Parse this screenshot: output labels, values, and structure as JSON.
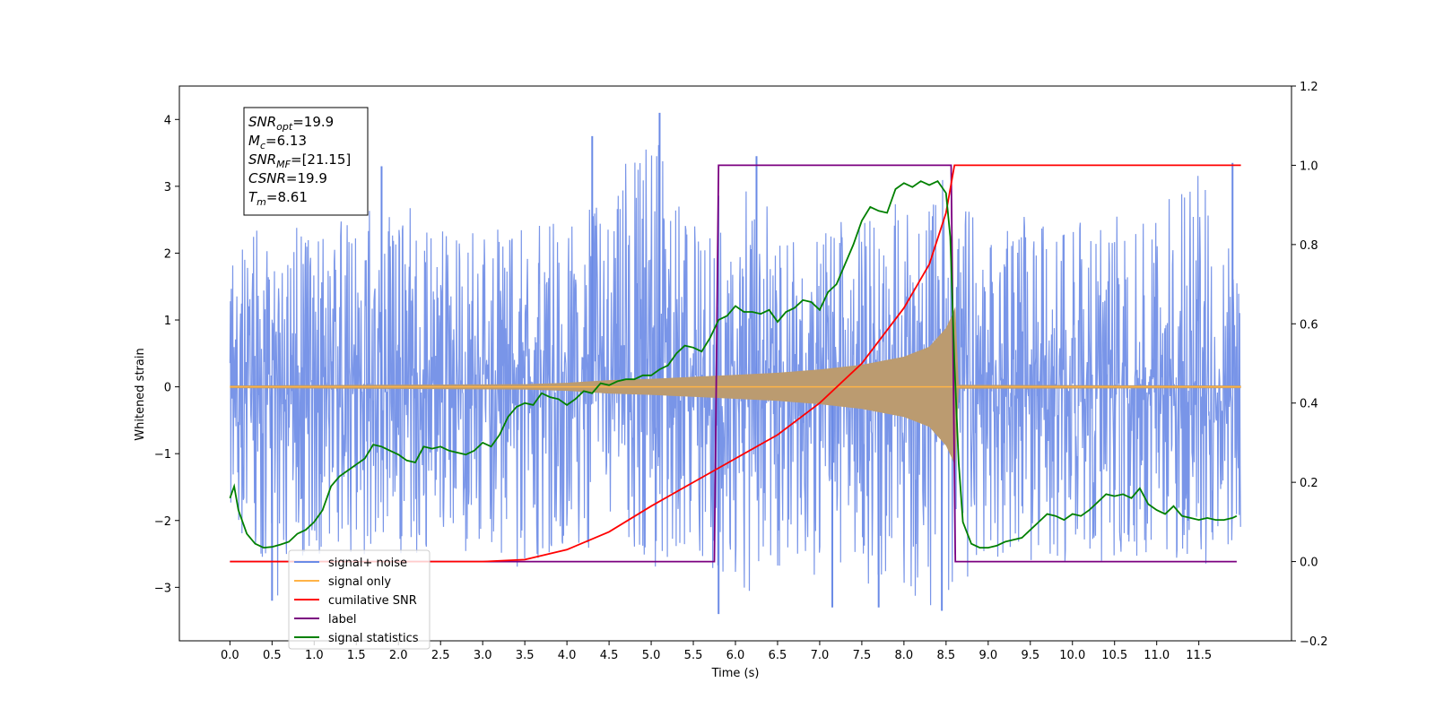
{
  "chart_data": {
    "type": "line",
    "xlabel": "Time (s)",
    "ylabel": "Whitened strain",
    "xlim": [
      -0.6,
      12.6
    ],
    "ylim_left": [
      -3.8,
      4.5
    ],
    "ylim_right": [
      -0.2,
      1.2
    ],
    "x_ticks": [
      0.0,
      0.5,
      1.0,
      1.5,
      2.0,
      2.5,
      3.0,
      3.5,
      4.0,
      4.5,
      5.0,
      5.5,
      6.0,
      6.5,
      7.0,
      7.5,
      8.0,
      8.5,
      9.0,
      9.5,
      10.0,
      10.5,
      11.0,
      11.5
    ],
    "x_tick_labels": [
      "0.0",
      "0.5",
      "1.0",
      "1.5",
      "2.0",
      "2.5",
      "3.0",
      "3.5",
      "4.0",
      "4.5",
      "5.0",
      "5.5",
      "6.0",
      "6.5",
      "7.0",
      "7.5",
      "8.0",
      "8.5",
      "9.0",
      "9.5",
      "10.0",
      "10.5",
      "11.0",
      "11.5"
    ],
    "y_left_ticks": [
      -3,
      -2,
      -1,
      0,
      1,
      2,
      3,
      4
    ],
    "y_left_tick_labels": [
      "−3",
      "−2",
      "−1",
      "0",
      "1",
      "2",
      "3",
      "4"
    ],
    "y_right_ticks": [
      -0.2,
      0.0,
      0.2,
      0.4,
      0.6,
      0.8,
      1.0,
      1.2
    ],
    "y_right_tick_labels": [
      "−0.2",
      "0.0",
      "0.2",
      "0.4",
      "0.6",
      "0.8",
      "1.0",
      "1.2"
    ],
    "legend_placement": "lower-left",
    "grid": false,
    "annotation": [
      {
        "main": "SNR",
        "sub": "opt",
        "value": "=19.9"
      },
      {
        "main": "M",
        "sub": "c",
        "value": "=6.13"
      },
      {
        "main": "SNR",
        "sub": "MF",
        "value": "=[21.15]"
      },
      {
        "main": "CSNR",
        "sub": "",
        "value": "=19.9"
      },
      {
        "main": "T",
        "sub": "m",
        "value": "=8.61"
      }
    ],
    "series": [
      {
        "name": "signal+ noise",
        "axis": "left",
        "color": "#6a8ae6",
        "envelope_x": [
          0.0,
          0.5,
          1.0,
          1.5,
          2.0,
          2.5,
          3.0,
          3.5,
          4.0,
          4.5,
          5.0,
          5.5,
          6.0,
          6.5,
          7.0,
          7.5,
          8.0,
          8.5,
          9.0,
          9.5,
          10.0,
          10.5,
          11.0,
          11.5,
          12.0
        ],
        "envelope_max": [
          2.5,
          2.6,
          2.7,
          3.0,
          2.8,
          2.4,
          2.6,
          2.5,
          2.7,
          2.9,
          4.1,
          2.6,
          3.3,
          2.5,
          2.6,
          2.8,
          2.9,
          3.3,
          2.6,
          2.6,
          2.5,
          2.6,
          2.6,
          3.4,
          2.0
        ],
        "envelope_min": [
          -2.2,
          -3.2,
          -2.7,
          -2.5,
          -2.8,
          -2.4,
          -2.6,
          -2.9,
          -2.6,
          -2.6,
          -2.7,
          -2.7,
          -3.4,
          -2.9,
          -2.8,
          -3.2,
          -3.3,
          -3.3,
          -2.7,
          -2.8,
          -2.6,
          -2.7,
          -2.7,
          -2.9,
          -2.2
        ],
        "spikes": [
          [
            0.5,
            -3.2
          ],
          [
            1.8,
            3.3
          ],
          [
            4.3,
            3.75
          ],
          [
            5.1,
            4.1
          ],
          [
            5.8,
            -3.4
          ],
          [
            6.25,
            3.45
          ],
          [
            7.15,
            -3.3
          ],
          [
            7.7,
            -3.3
          ],
          [
            8.45,
            -3.35
          ],
          [
            11.9,
            3.35
          ]
        ]
      },
      {
        "name": "signal only",
        "axis": "left",
        "color": "#ffb347",
        "envelope_x": [
          0.0,
          3.5,
          4.0,
          4.5,
          5.0,
          5.5,
          6.0,
          6.5,
          7.0,
          7.5,
          8.0,
          8.3,
          8.5,
          8.58,
          8.61,
          8.65,
          12.0
        ],
        "envelope_amp": [
          0.02,
          0.04,
          0.06,
          0.1,
          0.12,
          0.15,
          0.18,
          0.21,
          0.26,
          0.33,
          0.45,
          0.6,
          0.88,
          1.1,
          1.2,
          0.03,
          0.02
        ]
      },
      {
        "name": "cumilative SNR",
        "axis": "right",
        "color": "#ff0000",
        "x": [
          0.0,
          2.0,
          3.0,
          3.5,
          4.0,
          4.5,
          5.0,
          5.5,
          6.0,
          6.5,
          7.0,
          7.5,
          8.0,
          8.3,
          8.5,
          8.6,
          8.61,
          12.0
        ],
        "y": [
          0.0,
          0.0,
          0.0,
          0.005,
          0.03,
          0.075,
          0.14,
          0.2,
          0.26,
          0.32,
          0.4,
          0.5,
          0.64,
          0.75,
          0.88,
          1.0,
          1.0,
          1.0
        ]
      },
      {
        "name": "label",
        "axis": "right",
        "color": "#7b0080",
        "x": [
          0.0,
          5.75,
          5.8,
          8.56,
          8.61,
          11.95
        ],
        "y": [
          0.0,
          0.0,
          1.0,
          1.0,
          0.0,
          0.0
        ]
      },
      {
        "name": "signal statistics",
        "axis": "right",
        "color": "#008000",
        "x": [
          0.0,
          0.05,
          0.1,
          0.2,
          0.3,
          0.4,
          0.5,
          0.6,
          0.7,
          0.8,
          0.9,
          1.0,
          1.1,
          1.2,
          1.3,
          1.4,
          1.5,
          1.6,
          1.7,
          1.8,
          1.9,
          2.0,
          2.1,
          2.2,
          2.3,
          2.4,
          2.5,
          2.6,
          2.7,
          2.8,
          2.9,
          3.0,
          3.1,
          3.2,
          3.3,
          3.4,
          3.5,
          3.6,
          3.7,
          3.8,
          3.9,
          4.0,
          4.1,
          4.2,
          4.3,
          4.4,
          4.5,
          4.6,
          4.7,
          4.8,
          4.9,
          5.0,
          5.1,
          5.2,
          5.3,
          5.4,
          5.5,
          5.6,
          5.7,
          5.8,
          5.9,
          6.0,
          6.1,
          6.2,
          6.3,
          6.4,
          6.5,
          6.6,
          6.7,
          6.8,
          6.9,
          7.0,
          7.1,
          7.2,
          7.3,
          7.4,
          7.5,
          7.6,
          7.7,
          7.8,
          7.9,
          8.0,
          8.1,
          8.2,
          8.3,
          8.4,
          8.5,
          8.55,
          8.6,
          8.65,
          8.7,
          8.8,
          8.9,
          9.0,
          9.1,
          9.2,
          9.3,
          9.4,
          9.5,
          9.6,
          9.7,
          9.8,
          9.9,
          10.0,
          10.1,
          10.2,
          10.3,
          10.4,
          10.5,
          10.6,
          10.7,
          10.8,
          10.9,
          11.0,
          11.1,
          11.2,
          11.3,
          11.4,
          11.5,
          11.6,
          11.7,
          11.8,
          11.9,
          11.95
        ],
        "y": [
          0.16,
          0.19,
          0.13,
          0.07,
          0.045,
          0.035,
          0.037,
          0.043,
          0.05,
          0.07,
          0.08,
          0.1,
          0.13,
          0.19,
          0.215,
          0.23,
          0.245,
          0.26,
          0.295,
          0.29,
          0.28,
          0.27,
          0.255,
          0.25,
          0.29,
          0.285,
          0.29,
          0.28,
          0.275,
          0.27,
          0.28,
          0.3,
          0.29,
          0.32,
          0.365,
          0.39,
          0.4,
          0.395,
          0.425,
          0.415,
          0.41,
          0.395,
          0.41,
          0.43,
          0.425,
          0.45,
          0.445,
          0.455,
          0.46,
          0.46,
          0.47,
          0.47,
          0.485,
          0.495,
          0.525,
          0.545,
          0.54,
          0.53,
          0.565,
          0.61,
          0.62,
          0.645,
          0.63,
          0.63,
          0.625,
          0.635,
          0.605,
          0.63,
          0.64,
          0.66,
          0.655,
          0.635,
          0.68,
          0.7,
          0.75,
          0.8,
          0.86,
          0.895,
          0.885,
          0.88,
          0.94,
          0.955,
          0.945,
          0.96,
          0.95,
          0.96,
          0.93,
          0.82,
          0.5,
          0.25,
          0.1,
          0.045,
          0.035,
          0.035,
          0.04,
          0.05,
          0.055,
          0.06,
          0.08,
          0.1,
          0.12,
          0.115,
          0.105,
          0.12,
          0.115,
          0.13,
          0.15,
          0.17,
          0.165,
          0.17,
          0.16,
          0.185,
          0.145,
          0.13,
          0.12,
          0.14,
          0.115,
          0.11,
          0.105,
          0.11,
          0.105,
          0.105,
          0.11,
          0.115
        ]
      }
    ]
  }
}
